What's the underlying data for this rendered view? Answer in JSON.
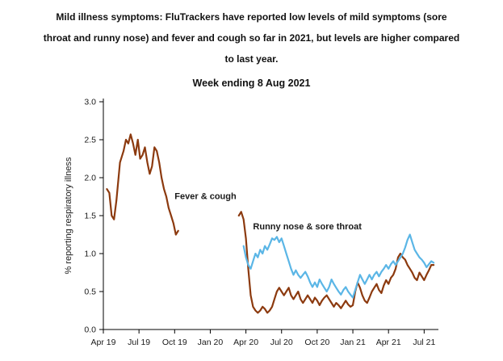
{
  "header": {
    "title_lines": [
      "Mild illness symptoms: FluTrackers have reported low levels of mild symptoms (sore",
      "throat and runny nose) and fever and cough so far in 2021, but levels are higher compared",
      "to last year."
    ]
  },
  "chart_data": {
    "type": "line",
    "title": "Week ending 8 Aug 2021",
    "xlabel": "",
    "ylabel": "% reporting respiratory illness",
    "ylim": [
      0,
      3
    ],
    "ytick_step": 0.5,
    "x_unit": "months since Apr 2019",
    "xlim": [
      0,
      28.2
    ],
    "grid": false,
    "legend_position": "inline-annotations",
    "xticks": [
      {
        "x": 0,
        "label": "Apr 19"
      },
      {
        "x": 3,
        "label": "Jul 19"
      },
      {
        "x": 6,
        "label": "Oct 19"
      },
      {
        "x": 9,
        "label": "Jan 20"
      },
      {
        "x": 12,
        "label": "Apr 20"
      },
      {
        "x": 15,
        "label": "Jul 20"
      },
      {
        "x": 18,
        "label": "Oct 20"
      },
      {
        "x": 21,
        "label": "Jan 21"
      },
      {
        "x": 24,
        "label": "Apr 21"
      },
      {
        "x": 27,
        "label": "Jul 21"
      }
    ],
    "series": [
      {
        "name": "Fever & cough",
        "color": "#8c3a0f",
        "segments": [
          [
            [
              0.3,
              1.85
            ],
            [
              0.5,
              1.8
            ],
            [
              0.7,
              1.5
            ],
            [
              0.9,
              1.45
            ],
            [
              1.1,
              1.7
            ],
            [
              1.4,
              2.2
            ],
            [
              1.7,
              2.35
            ],
            [
              1.9,
              2.5
            ],
            [
              2.1,
              2.45
            ],
            [
              2.3,
              2.57
            ],
            [
              2.5,
              2.45
            ],
            [
              2.7,
              2.3
            ],
            [
              2.9,
              2.5
            ],
            [
              3.1,
              2.25
            ],
            [
              3.3,
              2.3
            ],
            [
              3.5,
              2.4
            ],
            [
              3.7,
              2.2
            ],
            [
              3.9,
              2.05
            ],
            [
              4.1,
              2.15
            ],
            [
              4.3,
              2.4
            ],
            [
              4.5,
              2.35
            ],
            [
              4.7,
              2.2
            ],
            [
              4.9,
              2.0
            ],
            [
              5.1,
              1.85
            ],
            [
              5.3,
              1.75
            ],
            [
              5.5,
              1.6
            ],
            [
              5.7,
              1.5
            ],
            [
              5.9,
              1.4
            ],
            [
              6.1,
              1.25
            ],
            [
              6.3,
              1.3
            ]
          ],
          [
            [
              11.4,
              1.5
            ],
            [
              11.6,
              1.55
            ],
            [
              11.8,
              1.45
            ],
            [
              12.0,
              1.2
            ],
            [
              12.2,
              0.8
            ],
            [
              12.4,
              0.45
            ],
            [
              12.6,
              0.3
            ],
            [
              12.8,
              0.25
            ],
            [
              13.0,
              0.22
            ],
            [
              13.2,
              0.25
            ],
            [
              13.4,
              0.3
            ],
            [
              13.6,
              0.27
            ],
            [
              13.8,
              0.22
            ],
            [
              14.0,
              0.25
            ],
            [
              14.2,
              0.3
            ],
            [
              14.4,
              0.4
            ],
            [
              14.6,
              0.5
            ],
            [
              14.8,
              0.55
            ],
            [
              15.0,
              0.5
            ],
            [
              15.2,
              0.45
            ],
            [
              15.4,
              0.5
            ],
            [
              15.6,
              0.55
            ],
            [
              15.8,
              0.45
            ],
            [
              16.0,
              0.4
            ],
            [
              16.2,
              0.45
            ],
            [
              16.4,
              0.5
            ],
            [
              16.6,
              0.4
            ],
            [
              16.8,
              0.35
            ],
            [
              17.0,
              0.4
            ],
            [
              17.2,
              0.45
            ],
            [
              17.4,
              0.4
            ],
            [
              17.6,
              0.35
            ],
            [
              17.8,
              0.42
            ],
            [
              18.0,
              0.38
            ],
            [
              18.2,
              0.32
            ],
            [
              18.4,
              0.38
            ],
            [
              18.6,
              0.42
            ],
            [
              18.8,
              0.45
            ],
            [
              19.0,
              0.4
            ],
            [
              19.2,
              0.35
            ],
            [
              19.4,
              0.3
            ],
            [
              19.6,
              0.35
            ],
            [
              19.8,
              0.32
            ],
            [
              20.0,
              0.28
            ],
            [
              20.2,
              0.33
            ],
            [
              20.4,
              0.38
            ],
            [
              20.6,
              0.33
            ],
            [
              20.8,
              0.3
            ],
            [
              21.0,
              0.32
            ],
            [
              21.2,
              0.5
            ],
            [
              21.4,
              0.62
            ],
            [
              21.6,
              0.55
            ],
            [
              21.8,
              0.45
            ],
            [
              22.0,
              0.38
            ],
            [
              22.2,
              0.35
            ],
            [
              22.4,
              0.42
            ],
            [
              22.6,
              0.5
            ],
            [
              22.8,
              0.55
            ],
            [
              23.0,
              0.6
            ],
            [
              23.2,
              0.52
            ],
            [
              23.4,
              0.48
            ],
            [
              23.6,
              0.58
            ],
            [
              23.8,
              0.65
            ],
            [
              24.0,
              0.6
            ],
            [
              24.2,
              0.68
            ],
            [
              24.4,
              0.72
            ],
            [
              24.6,
              0.8
            ],
            [
              24.8,
              0.95
            ],
            [
              25.0,
              1.0
            ],
            [
              25.2,
              0.95
            ],
            [
              25.4,
              0.92
            ],
            [
              25.6,
              0.85
            ],
            [
              25.8,
              0.8
            ],
            [
              26.0,
              0.75
            ],
            [
              26.2,
              0.68
            ],
            [
              26.4,
              0.65
            ],
            [
              26.6,
              0.75
            ],
            [
              26.8,
              0.7
            ],
            [
              27.0,
              0.65
            ],
            [
              27.2,
              0.72
            ],
            [
              27.4,
              0.78
            ],
            [
              27.6,
              0.85
            ],
            [
              27.8,
              0.85
            ]
          ]
        ]
      },
      {
        "name": "Runny nose & sore throat",
        "color": "#5bb6e6",
        "segments": [
          [
            [
              11.8,
              1.1
            ],
            [
              12.0,
              0.95
            ],
            [
              12.2,
              0.85
            ],
            [
              12.4,
              0.8
            ],
            [
              12.6,
              0.9
            ],
            [
              12.8,
              1.0
            ],
            [
              13.0,
              0.95
            ],
            [
              13.2,
              1.05
            ],
            [
              13.4,
              1.0
            ],
            [
              13.6,
              1.1
            ],
            [
              13.8,
              1.05
            ],
            [
              14.0,
              1.12
            ],
            [
              14.2,
              1.2
            ],
            [
              14.4,
              1.18
            ],
            [
              14.6,
              1.22
            ],
            [
              14.8,
              1.15
            ],
            [
              15.0,
              1.2
            ],
            [
              15.2,
              1.1
            ],
            [
              15.4,
              1.0
            ],
            [
              15.6,
              0.9
            ],
            [
              15.8,
              0.8
            ],
            [
              16.0,
              0.72
            ],
            [
              16.2,
              0.78
            ],
            [
              16.4,
              0.72
            ],
            [
              16.6,
              0.68
            ],
            [
              16.8,
              0.72
            ],
            [
              17.0,
              0.76
            ],
            [
              17.2,
              0.7
            ],
            [
              17.4,
              0.62
            ],
            [
              17.6,
              0.56
            ],
            [
              17.8,
              0.62
            ],
            [
              18.0,
              0.56
            ],
            [
              18.2,
              0.66
            ],
            [
              18.4,
              0.6
            ],
            [
              18.6,
              0.55
            ],
            [
              18.8,
              0.5
            ],
            [
              19.0,
              0.56
            ],
            [
              19.2,
              0.66
            ],
            [
              19.4,
              0.6
            ],
            [
              19.6,
              0.55
            ],
            [
              19.8,
              0.5
            ],
            [
              20.0,
              0.46
            ],
            [
              20.2,
              0.52
            ],
            [
              20.4,
              0.56
            ],
            [
              20.6,
              0.5
            ],
            [
              20.8,
              0.46
            ],
            [
              21.0,
              0.42
            ],
            [
              21.2,
              0.52
            ],
            [
              21.4,
              0.62
            ],
            [
              21.6,
              0.72
            ],
            [
              21.8,
              0.66
            ],
            [
              22.0,
              0.6
            ],
            [
              22.2,
              0.66
            ],
            [
              22.4,
              0.72
            ],
            [
              22.6,
              0.66
            ],
            [
              22.8,
              0.72
            ],
            [
              23.0,
              0.76
            ],
            [
              23.2,
              0.7
            ],
            [
              23.4,
              0.76
            ],
            [
              23.6,
              0.8
            ],
            [
              23.8,
              0.85
            ],
            [
              24.0,
              0.8
            ],
            [
              24.2,
              0.86
            ],
            [
              24.4,
              0.9
            ],
            [
              24.6,
              0.85
            ],
            [
              24.8,
              0.9
            ],
            [
              25.0,
              0.95
            ],
            [
              25.2,
              1.0
            ],
            [
              25.4,
              1.08
            ],
            [
              25.6,
              1.18
            ],
            [
              25.8,
              1.25
            ],
            [
              26.0,
              1.15
            ],
            [
              26.2,
              1.05
            ],
            [
              26.4,
              1.0
            ],
            [
              26.6,
              0.95
            ],
            [
              26.8,
              0.92
            ],
            [
              27.0,
              0.88
            ],
            [
              27.2,
              0.82
            ],
            [
              27.4,
              0.86
            ],
            [
              27.6,
              0.9
            ],
            [
              27.8,
              0.88
            ]
          ]
        ]
      }
    ],
    "annotations": [
      {
        "text": "Fever & cough",
        "x": 6.0,
        "y": 1.72,
        "color": "#8c3a0f"
      },
      {
        "text": "Runny nose & sore throat",
        "x": 12.6,
        "y": 1.32,
        "color": "#5bb6e6"
      }
    ]
  }
}
